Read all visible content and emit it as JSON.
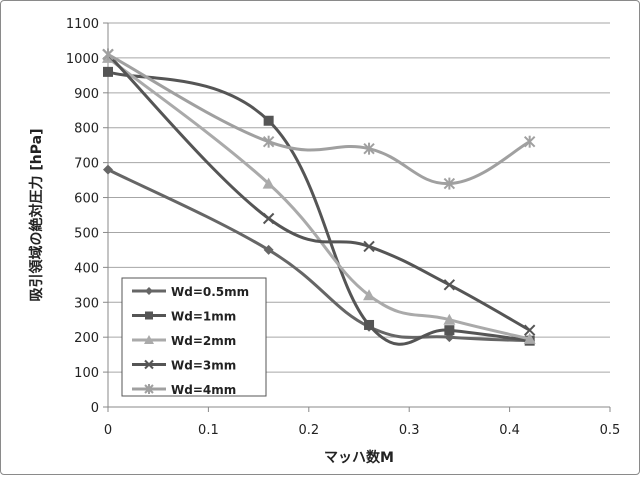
{
  "chart_data": {
    "type": "line",
    "title": "",
    "xlabel": "マッハ数M",
    "ylabel": "吸引領域の絶対圧力 [hPa]",
    "xlim": [
      0,
      0.5
    ],
    "ylim": [
      0,
      1100
    ],
    "xticks": [
      "0",
      "0.1",
      "0.2",
      "0.3",
      "0.4",
      "0.5"
    ],
    "yticks": [
      "0",
      "100",
      "200",
      "300",
      "400",
      "500",
      "600",
      "700",
      "800",
      "900",
      "1000",
      "1100"
    ],
    "grid": "horizontal",
    "legend_position": "bottom-left",
    "series": [
      {
        "name": "Wd=0.5mm",
        "marker": "diamond",
        "color": "#666666",
        "x": [
          0,
          0.16,
          0.26,
          0.34,
          0.42
        ],
        "y": [
          680,
          450,
          230,
          200,
          190
        ]
      },
      {
        "name": "Wd=1mm",
        "marker": "square",
        "color": "#555555",
        "x": [
          0,
          0.16,
          0.26,
          0.34,
          0.42
        ],
        "y": [
          960,
          820,
          235,
          220,
          190
        ]
      },
      {
        "name": "Wd=2mm",
        "marker": "triangle",
        "color": "#aaaaaa",
        "x": [
          0,
          0.16,
          0.26,
          0.34,
          0.42
        ],
        "y": [
          1000,
          640,
          320,
          250,
          195
        ]
      },
      {
        "name": "Wd=3mm",
        "marker": "x",
        "color": "#555555",
        "x": [
          0,
          0.16,
          0.26,
          0.34,
          0.42
        ],
        "y": [
          1010,
          540,
          460,
          350,
          220
        ]
      },
      {
        "name": "Wd=4mm",
        "marker": "star",
        "color": "#a0a0a0",
        "x": [
          0,
          0.16,
          0.26,
          0.34,
          0.42
        ],
        "y": [
          1010,
          760,
          740,
          640,
          760
        ]
      }
    ]
  }
}
